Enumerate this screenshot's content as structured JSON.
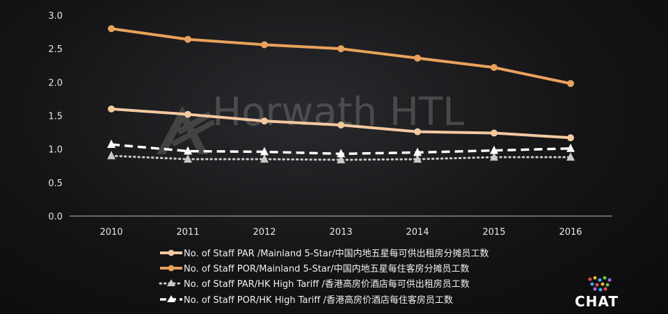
{
  "watermark": {
    "text": "Horwath HTL"
  },
  "brand": {
    "text": "CHAT"
  },
  "chart_data": {
    "type": "line",
    "title": "",
    "xlabel": "",
    "ylabel": "",
    "x": [
      "2010",
      "2011",
      "2012",
      "2013",
      "2014",
      "2015",
      "2016"
    ],
    "ylim": [
      0,
      3.0
    ],
    "yticks": [
      "0.0",
      "0.5",
      "1.0",
      "1.5",
      "2.0",
      "2.5",
      "3.0"
    ],
    "grid": false,
    "legend_position": "bottom",
    "series": [
      {
        "name": "No. of Staff PAR /Mainland 5-Star/中国内地五星每可供出租房分摊员工数",
        "values": [
          1.6,
          1.52,
          1.42,
          1.36,
          1.26,
          1.24,
          1.17
        ],
        "color": "#f3c9a0",
        "style": "solid",
        "marker": "circle"
      },
      {
        "name": "No. of Staff POR/Mainland 5-Star/中国内地五星每住客房分摊员工数",
        "values": [
          2.8,
          2.64,
          2.56,
          2.5,
          2.36,
          2.22,
          1.98
        ],
        "color": "#e9a25b",
        "style": "solid",
        "marker": "circle"
      },
      {
        "name": "No. of Staff PAR/HK High Tariff /香港高房价酒店每可供出租房员工数",
        "values": [
          0.9,
          0.85,
          0.85,
          0.84,
          0.85,
          0.88,
          0.88
        ],
        "color": "#c9c9c9",
        "style": "dotted",
        "marker": "triangle"
      },
      {
        "name": "No. of Staff POR/HK High Tariff /香港高房价酒店每住客房员工数",
        "values": [
          1.07,
          0.97,
          0.96,
          0.93,
          0.95,
          0.98,
          1.01
        ],
        "color": "#ffffff",
        "style": "dashed",
        "marker": "triangle"
      }
    ]
  }
}
